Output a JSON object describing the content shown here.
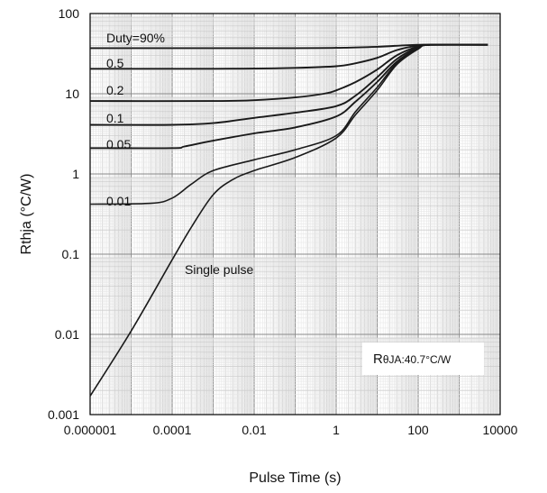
{
  "chart_data": {
    "type": "line",
    "title": "",
    "xlabel": "Pulse Time (s)",
    "ylabel": "Rthja (°C/W)",
    "xscale": "log",
    "yscale": "log",
    "xlim": [
      1e-06,
      10000
    ],
    "ylim": [
      0.001,
      100
    ],
    "grid": true,
    "x_tick_labels": [
      "0.000001",
      "0.0001",
      "0.01",
      "1",
      "100",
      "10000"
    ],
    "y_tick_labels": [
      "0.001",
      "0.01",
      "0.1",
      "1",
      "10",
      "100"
    ],
    "annotation": {
      "prefix": "R",
      "subscript": "θJA",
      "suffix": ":40.7°C/W"
    },
    "series": [
      {
        "name": "Duty=90%",
        "x": [
          1e-06,
          0.001,
          0.1,
          1,
          10,
          40,
          100,
          200,
          5000
        ],
        "y": [
          37,
          37,
          37,
          37.3,
          38.5,
          40,
          40.7,
          40.7,
          40.7
        ]
      },
      {
        "name": "0.5",
        "x": [
          1e-06,
          0.001,
          0.01,
          0.1,
          1,
          3,
          10,
          30,
          100,
          200,
          5000
        ],
        "y": [
          20.5,
          20.5,
          20.6,
          21,
          22,
          24,
          28,
          35,
          40,
          40.7,
          40.7
        ]
      },
      {
        "name": "0.2",
        "x": [
          1e-06,
          0.001,
          0.01,
          0.1,
          0.5,
          1,
          3,
          10,
          30,
          100,
          200,
          5000
        ],
        "y": [
          8.1,
          8.1,
          8.3,
          9,
          10,
          11,
          14,
          20,
          30,
          39,
          40.7,
          40.7
        ]
      },
      {
        "name": "0.1",
        "x": [
          1e-06,
          0.0001,
          0.001,
          0.01,
          0.1,
          1,
          3,
          10,
          30,
          100,
          200,
          5000
        ],
        "y": [
          4.1,
          4.1,
          4.3,
          5,
          5.8,
          7,
          9.5,
          16,
          27,
          38,
          40.7,
          40.7
        ]
      },
      {
        "name": "0.05",
        "x": [
          1e-06,
          0.0001,
          0.0002,
          0.001,
          0.01,
          0.1,
          1,
          3,
          10,
          30,
          100,
          200,
          5000
        ],
        "y": [
          2.1,
          2.1,
          2.2,
          2.6,
          3.2,
          3.8,
          5.2,
          8,
          14,
          25,
          37,
          40.7,
          40.7
        ]
      },
      {
        "name": "0.01",
        "x": [
          1e-06,
          3e-05,
          0.0001,
          0.0003,
          0.001,
          0.01,
          0.1,
          1,
          3,
          10,
          30,
          100,
          200,
          5000
        ],
        "y": [
          0.42,
          0.43,
          0.5,
          0.75,
          1.1,
          1.5,
          2,
          3,
          6,
          12,
          24,
          37,
          40.7,
          40.7
        ]
      },
      {
        "name": "Single pulse",
        "x": [
          1e-06,
          1e-05,
          0.0001,
          0.0003,
          0.001,
          0.003,
          0.01,
          0.1,
          1,
          3,
          10,
          30,
          100,
          200,
          5000
        ],
        "y": [
          0.0017,
          0.011,
          0.085,
          0.22,
          0.55,
          0.85,
          1.1,
          1.6,
          2.8,
          5.5,
          11,
          23,
          36,
          40.7,
          40.7
        ]
      }
    ]
  }
}
